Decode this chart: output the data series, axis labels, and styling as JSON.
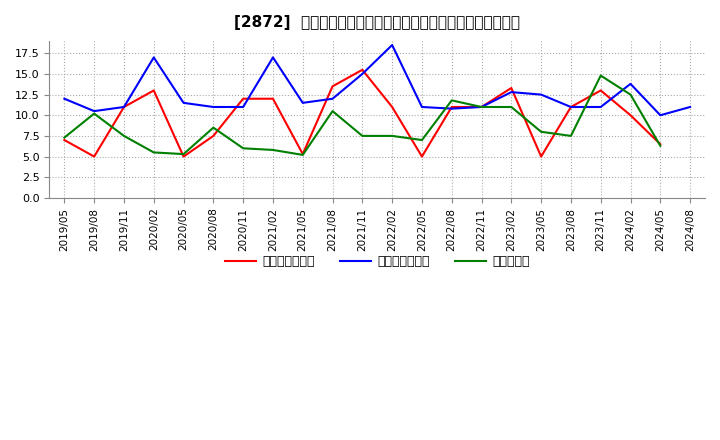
{
  "title": "[2872]  売上債権回転率、買入債務回転率、在庫回転率の推移",
  "dates": [
    "2019/05",
    "2019/08",
    "2019/11",
    "2020/02",
    "2020/05",
    "2020/08",
    "2020/11",
    "2021/02",
    "2021/05",
    "2021/08",
    "2021/11",
    "2022/02",
    "2022/05",
    "2022/08",
    "2022/11",
    "2023/02",
    "2023/05",
    "2023/08",
    "2023/11",
    "2024/02",
    "2024/05",
    "2024/08"
  ],
  "売上債権回転率": [
    7.0,
    5.0,
    11.0,
    13.0,
    5.0,
    7.5,
    12.0,
    12.0,
    5.3,
    13.5,
    15.5,
    11.0,
    5.0,
    11.0,
    11.0,
    13.3,
    5.0,
    11.0,
    13.0,
    10.0,
    6.5,
    null
  ],
  "買入債務回転率": [
    12.0,
    10.5,
    11.0,
    17.0,
    11.5,
    11.0,
    11.0,
    17.0,
    11.5,
    12.0,
    15.0,
    18.5,
    11.0,
    10.8,
    11.0,
    12.8,
    12.5,
    11.0,
    11.0,
    13.8,
    10.0,
    11.0
  ],
  "在庫回転率": [
    7.3,
    10.2,
    7.5,
    5.5,
    5.3,
    8.5,
    6.0,
    5.8,
    5.2,
    10.5,
    7.5,
    7.5,
    7.0,
    11.8,
    11.0,
    11.0,
    8.0,
    7.5,
    14.8,
    12.5,
    6.3,
    null
  ],
  "line_colors": {
    "売上債権回転率": "#ff0000",
    "買入債務回転率": "#0000ff",
    "在庫回転率": "#008000"
  },
  "legend_labels": [
    "売上債権回転率",
    "買入債務回転率",
    "在庫回転率"
  ],
  "ylim": [
    0,
    19.0
  ],
  "yticks": [
    0.0,
    2.5,
    5.0,
    7.5,
    10.0,
    12.5,
    15.0,
    17.5
  ],
  "background_color": "#ffffff",
  "plot_bg_color": "#ffffff",
  "grid_color": "#aaaaaa",
  "title_fontsize": 11,
  "legend_fontsize": 9,
  "tick_fontsize": 7.5,
  "linewidth": 1.5
}
